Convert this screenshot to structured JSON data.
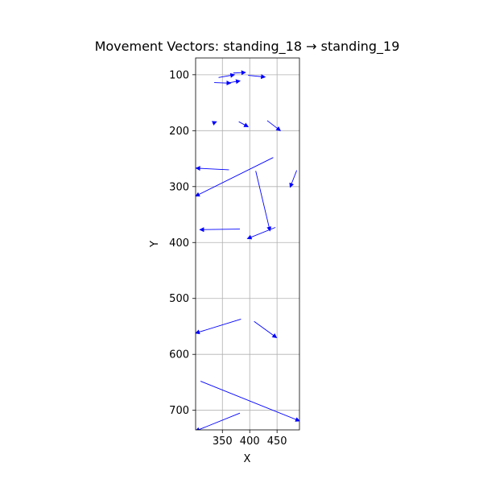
{
  "chart_data": {
    "type": "quiver",
    "title": "Movement Vectors: standing_18 → standing_19",
    "xlabel": "X",
    "ylabel": "Y",
    "xlim": [
      301,
      491
    ],
    "ylim": [
      735,
      70
    ],
    "y_inverted": true,
    "grid": true,
    "xticks": [
      350,
      400,
      450
    ],
    "yticks": [
      100,
      200,
      300,
      400,
      500,
      600,
      700
    ],
    "color": "#0000ff",
    "vectors": [
      {
        "x0": 343,
        "y0": 105,
        "x1": 372,
        "y1": 100
      },
      {
        "x0": 370,
        "y0": 97,
        "x1": 392,
        "y1": 96
      },
      {
        "x0": 397,
        "y0": 101,
        "x1": 428,
        "y1": 104
      },
      {
        "x0": 335,
        "y0": 114,
        "x1": 365,
        "y1": 115
      },
      {
        "x0": 364,
        "y0": 114,
        "x1": 382,
        "y1": 111
      },
      {
        "x0": 334,
        "y0": 186,
        "x1": 339,
        "y1": 184
      },
      {
        "x0": 380,
        "y0": 184,
        "x1": 397,
        "y1": 193
      },
      {
        "x0": 432,
        "y0": 182,
        "x1": 456,
        "y1": 200
      },
      {
        "x0": 362,
        "y0": 270,
        "x1": 302,
        "y1": 267
      },
      {
        "x0": 443,
        "y0": 248,
        "x1": 301,
        "y1": 317
      },
      {
        "x0": 486,
        "y0": 271,
        "x1": 474,
        "y1": 301
      },
      {
        "x0": 411,
        "y0": 272,
        "x1": 437,
        "y1": 379
      },
      {
        "x0": 382,
        "y0": 376,
        "x1": 309,
        "y1": 377
      },
      {
        "x0": 447,
        "y0": 373,
        "x1": 396,
        "y1": 393
      },
      {
        "x0": 384,
        "y0": 537,
        "x1": 301,
        "y1": 562
      },
      {
        "x0": 408,
        "y0": 541,
        "x1": 449,
        "y1": 570
      },
      {
        "x0": 310,
        "y0": 648,
        "x1": 491,
        "y1": 719
      },
      {
        "x0": 382,
        "y0": 705,
        "x1": 301,
        "y1": 737
      }
    ]
  }
}
